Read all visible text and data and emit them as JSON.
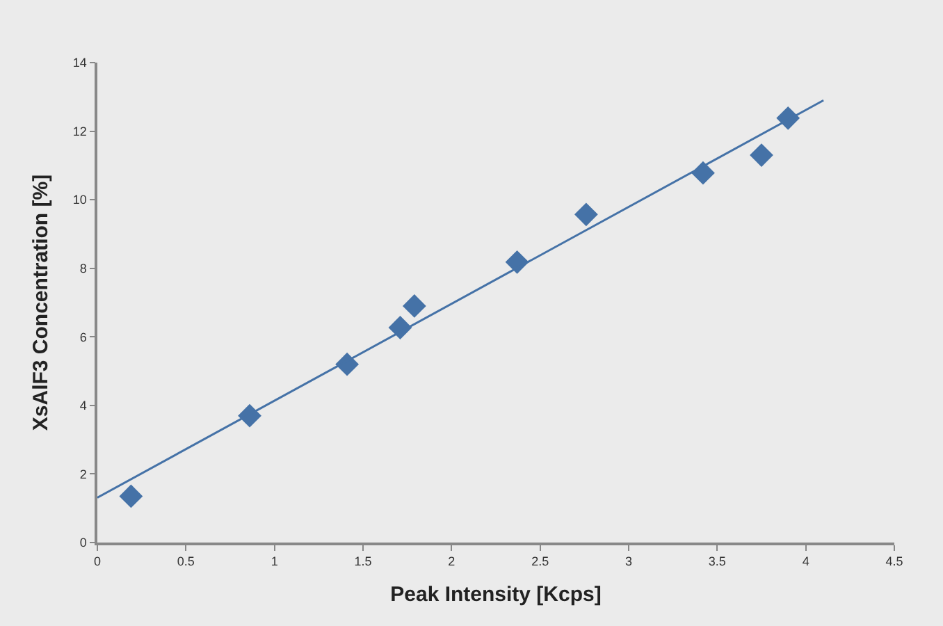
{
  "chart_data": {
    "type": "scatter",
    "xlabel": "Peak Intensity [Kcps]",
    "ylabel": "XsAlF3 Concentration [%]",
    "xlim": [
      0,
      4.5
    ],
    "xticks": [
      0,
      0.5,
      1,
      1.5,
      2,
      2.5,
      3,
      3.5,
      4,
      4.5
    ],
    "ylim": [
      0,
      14
    ],
    "yticks": [
      0,
      2,
      4,
      6,
      8,
      10,
      12,
      14
    ],
    "grid": false,
    "series": [
      {
        "marker": "diamond",
        "color": "#4572a7",
        "x": [
          0.19,
          0.86,
          1.41,
          1.71,
          1.79,
          2.37,
          2.76,
          3.42,
          3.75,
          3.9
        ],
        "values": [
          1.35,
          3.7,
          5.2,
          6.27,
          6.9,
          8.18,
          9.57,
          10.78,
          11.3,
          12.38
        ]
      },
      {
        "type": "line",
        "marker": "none",
        "line_style": "solid",
        "color": "#4572a7",
        "x": [
          0,
          4.1
        ],
        "values": [
          1.31,
          12.9
        ]
      }
    ]
  }
}
